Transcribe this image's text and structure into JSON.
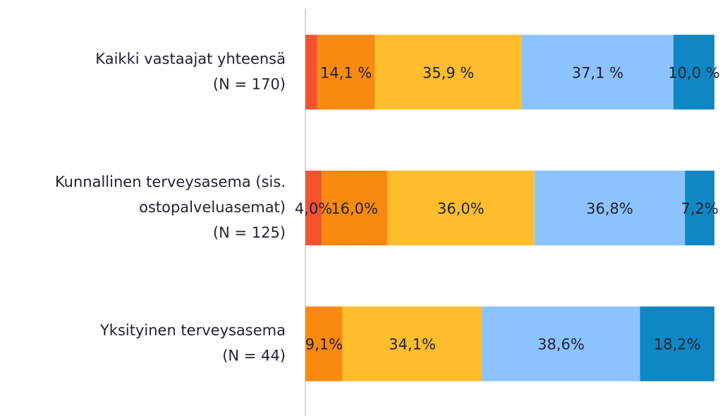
{
  "chart_data": {
    "type": "stacked_bar_horizontal",
    "categories": [
      [
        "Kaikki vastaajat yhteensä",
        "(N = 170)"
      ],
      [
        "Kunnallinen terveysasema (sis.",
        "ostopalveluasemat)",
        "(N = 125)"
      ],
      [
        "Yksityinen terveysasema",
        "(N = 44)"
      ]
    ],
    "xlim": [
      0,
      100
    ],
    "series": [
      {
        "color": "#f4532f",
        "values": [
          2.9,
          4.0,
          0
        ],
        "value_labels": [
          null,
          "4,0%",
          null
        ]
      },
      {
        "color": "#f98a0f",
        "values": [
          14.1,
          16.0,
          9.1
        ],
        "value_labels": [
          "14,1 %",
          "16,0%",
          "9,1%"
        ]
      },
      {
        "color": "#fdbd2c",
        "values": [
          35.9,
          36.0,
          34.1
        ],
        "value_labels": [
          "35,9 %",
          "36,0%",
          "34,1%"
        ]
      },
      {
        "color": "#8dc3fd",
        "values": [
          37.1,
          36.8,
          38.6
        ],
        "value_labels": [
          "37,1 %",
          "36,8%",
          "38,6%"
        ]
      },
      {
        "color": "#0f87c4",
        "values": [
          10.0,
          7.2,
          18.2
        ],
        "value_labels": [
          "10,0 %",
          "7,2%",
          "18,2%"
        ]
      }
    ]
  }
}
